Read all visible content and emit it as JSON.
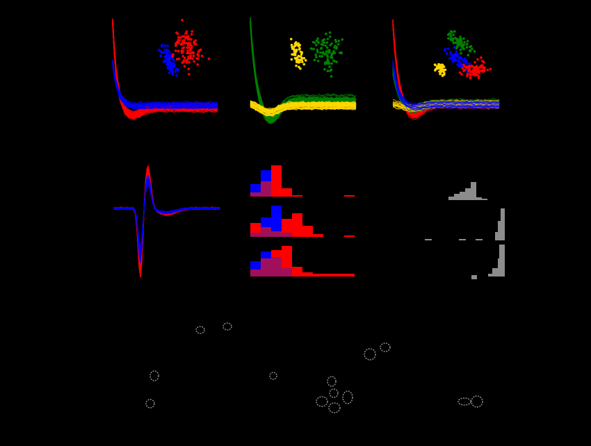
{
  "figure": {
    "background": "#000000",
    "colors": [
      "#ff0000",
      "#0000ff",
      "#008000",
      "#ffd700",
      "#8c8c8c",
      "#a0105a"
    ]
  }
}
